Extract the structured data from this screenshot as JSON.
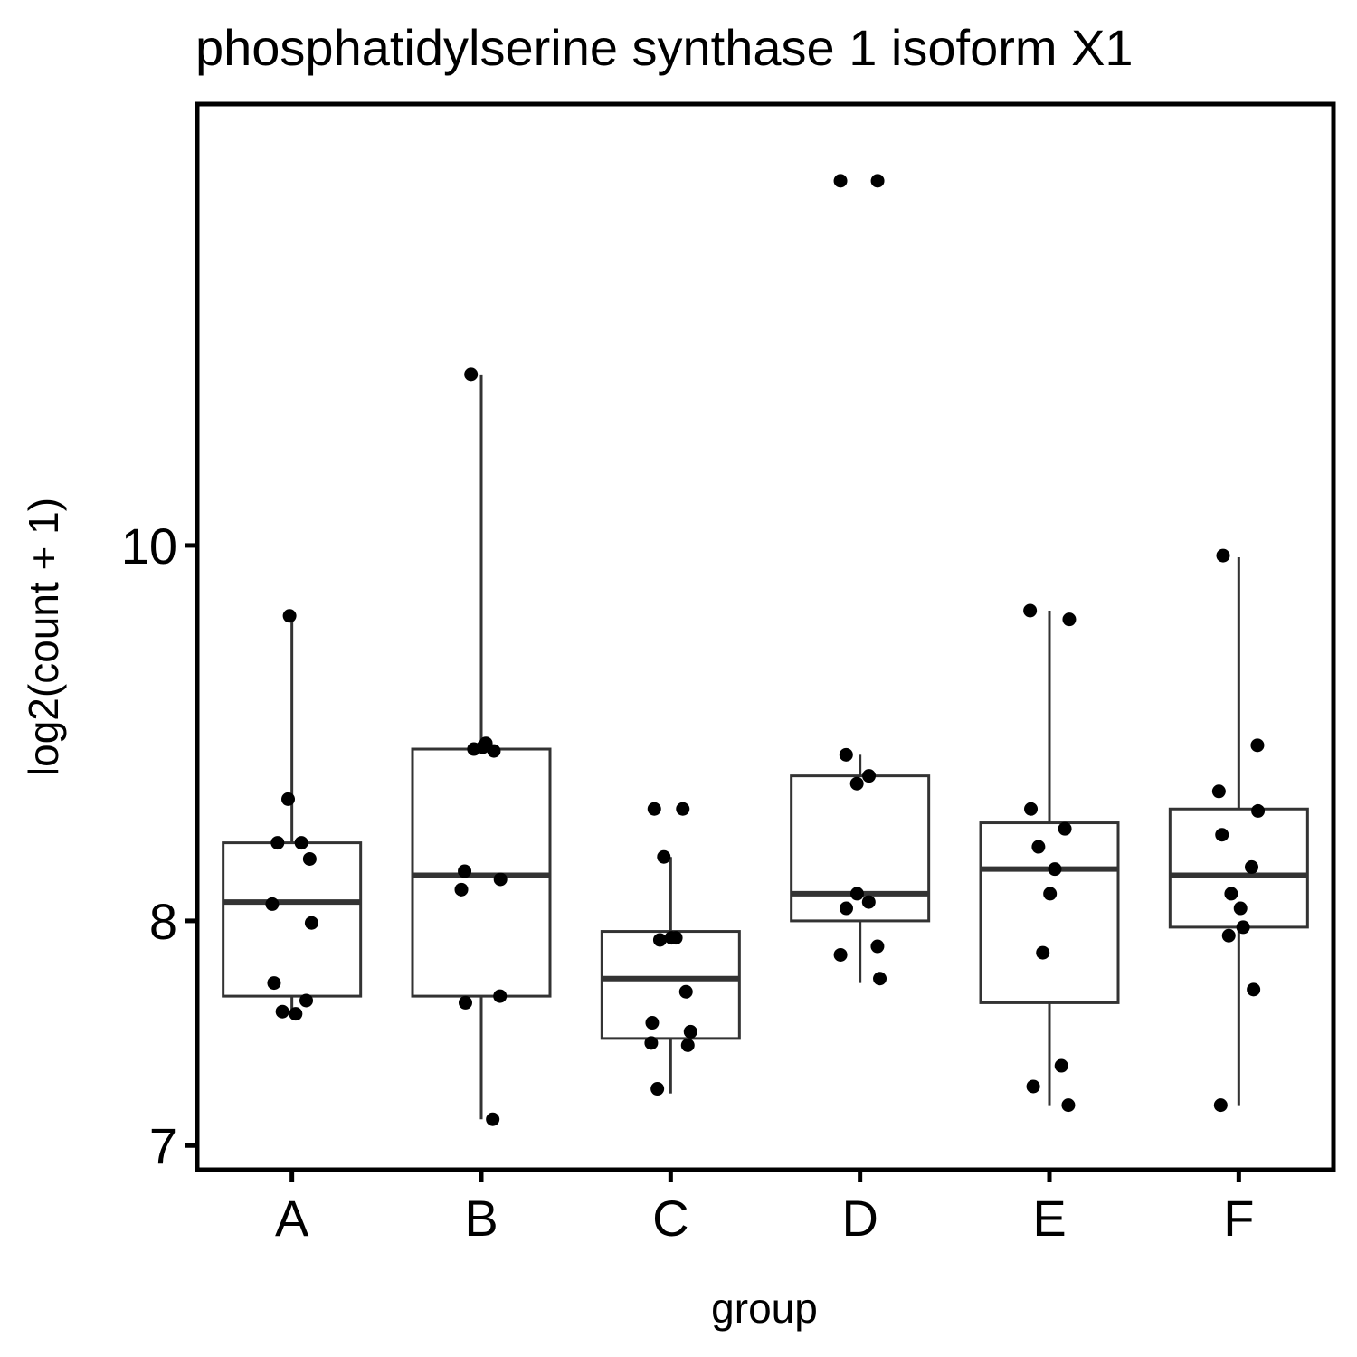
{
  "chart_data": {
    "type": "box",
    "title": "phosphatidylserine synthase 1 isoform X1",
    "xlabel": "group",
    "ylabel": "log2(count + 1)",
    "y_scale": "log",
    "ylim": [
      6.9,
      13.0
    ],
    "y_ticks": [
      7,
      8,
      10
    ],
    "y_tick_labels": [
      "7",
      "8",
      "10"
    ],
    "categories": [
      "A",
      "B",
      "C",
      "D",
      "E",
      "F"
    ],
    "boxes": [
      {
        "group": "A",
        "whisker_low": 7.57,
        "q1": 7.65,
        "median": 8.09,
        "q3": 8.38,
        "whisker_high": 9.59
      },
      {
        "group": "B",
        "whisker_low": 7.11,
        "q1": 7.65,
        "median": 8.22,
        "q3": 8.86,
        "whisker_high": 11.07
      },
      {
        "group": "C",
        "whisker_low": 7.22,
        "q1": 7.46,
        "median": 7.73,
        "q3": 7.95,
        "whisker_high": 8.31
      },
      {
        "group": "D",
        "whisker_low": 7.71,
        "q1": 8.0,
        "median": 8.13,
        "q3": 8.72,
        "whisker_high": 8.83
      },
      {
        "group": "E",
        "whisker_low": 7.17,
        "q1": 7.62,
        "median": 8.25,
        "q3": 8.48,
        "whisker_high": 9.62
      },
      {
        "group": "F",
        "whisker_low": 7.17,
        "q1": 7.97,
        "median": 8.22,
        "q3": 8.55,
        "whisker_high": 9.93
      }
    ],
    "points": [
      {
        "group": "A",
        "values": [
          9.59,
          8.6,
          8.38,
          8.38,
          8.3,
          8.08,
          7.99,
          7.71,
          7.63,
          7.58,
          7.57
        ]
      },
      {
        "group": "B",
        "values": [
          11.07,
          8.89,
          8.87,
          8.86,
          8.85,
          8.24,
          8.2,
          8.15,
          7.65,
          7.62,
          7.11
        ]
      },
      {
        "group": "C",
        "values": [
          8.55,
          8.55,
          8.31,
          7.92,
          7.92,
          7.91,
          7.67,
          7.53,
          7.49,
          7.44,
          7.43,
          7.24
        ]
      },
      {
        "group": "D",
        "values": [
          12.42,
          12.42,
          8.83,
          8.72,
          8.68,
          8.13,
          8.09,
          8.06,
          7.88,
          7.84,
          7.73
        ]
      },
      {
        "group": "E",
        "values": [
          9.62,
          9.57,
          8.55,
          8.45,
          8.36,
          8.25,
          8.13,
          7.85,
          7.34,
          7.25,
          7.17
        ]
      },
      {
        "group": "F",
        "values": [
          9.94,
          8.88,
          8.64,
          8.54,
          8.42,
          8.26,
          8.13,
          8.06,
          7.97,
          7.93,
          7.68,
          7.17
        ]
      }
    ],
    "grid": false,
    "legend": "none",
    "colors": {
      "box_stroke": "#333333",
      "point": "#000000",
      "frame": "#000000",
      "background": "#ffffff"
    }
  }
}
